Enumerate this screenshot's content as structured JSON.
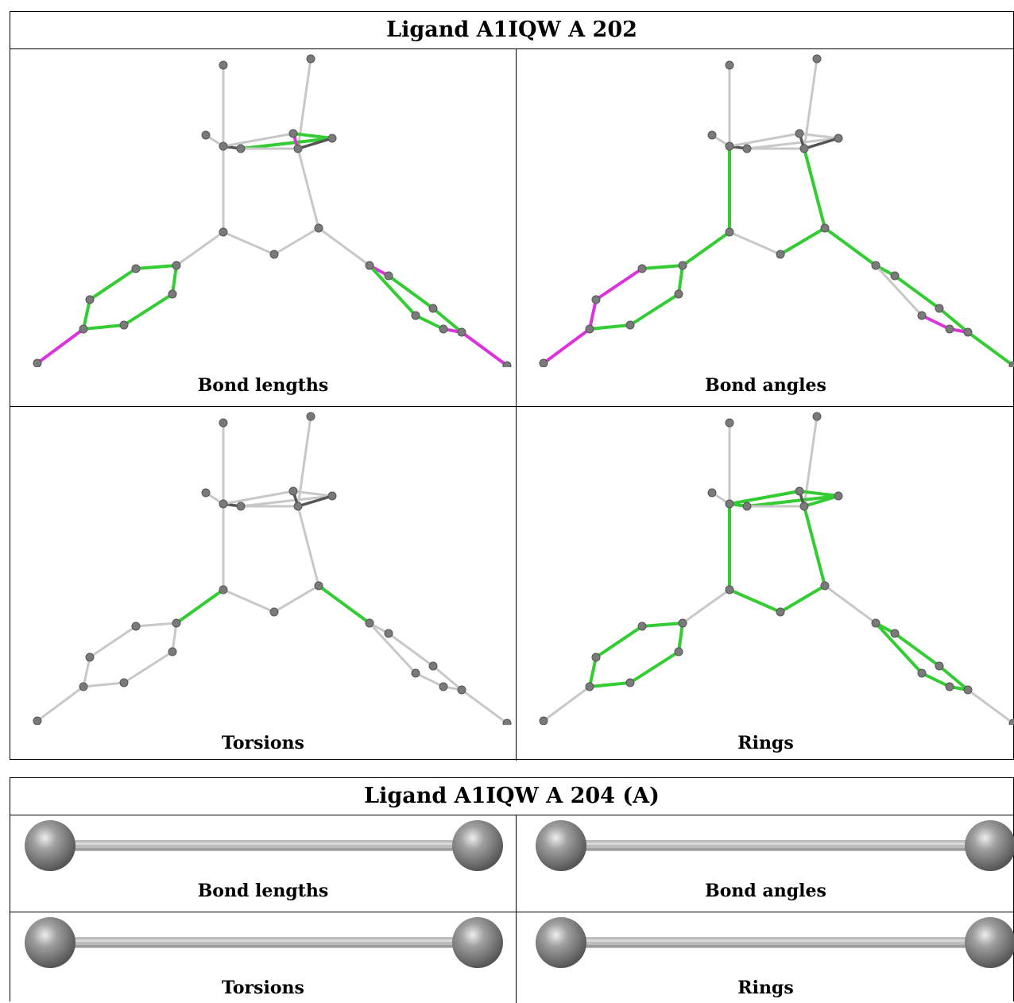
{
  "panels": [
    {
      "title": "Ligand A1IQW A 202",
      "cells": [
        "Bond lengths",
        "Bond angles",
        "Torsions",
        "Rings"
      ]
    },
    {
      "title": "Ligand A1IQW A 204 (A)",
      "cells": [
        "Bond lengths",
        "Bond angles",
        "Torsions",
        "Rings"
      ]
    }
  ],
  "colors": {
    "atom": "#7a7a7a",
    "bond_default": "#c8c8c8",
    "bond_dark": "#555555",
    "highlight_green": "#33cc33",
    "highlight_magenta": "#dd33dd",
    "border": "#000000"
  }
}
